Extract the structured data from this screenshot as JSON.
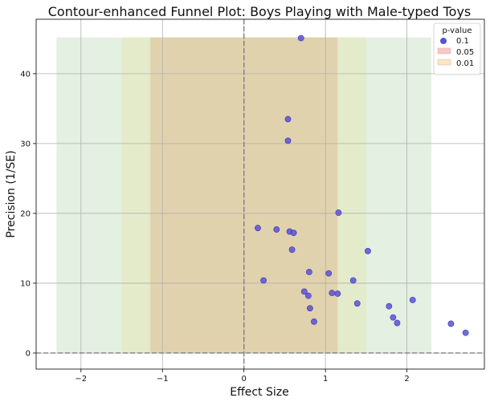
{
  "chart_data": {
    "type": "scatter",
    "title": "Contour-enhanced Funnel Plot: Boys Playing with Male-typed Toys",
    "xlabel": "Effect Size",
    "ylabel": "Precision (1/SE)",
    "xlim": [
      -2.55,
      2.95
    ],
    "ylim": [
      -2.3,
      47.8
    ],
    "xticks": [
      -2,
      -1,
      0,
      1,
      2
    ],
    "yticks": [
      0,
      10,
      20,
      30,
      40
    ],
    "grid": true,
    "legend": {
      "title": "p-value",
      "placement": "top-right",
      "entries": [
        {
          "label": "0.1",
          "kind": "marker",
          "color": "#5b52d6"
        },
        {
          "label": "0.05",
          "kind": "patch",
          "color": "#f4c9c6"
        },
        {
          "label": "0.01",
          "kind": "patch",
          "color": "#f9e6c4"
        }
      ]
    },
    "contour_regions": [
      {
        "x_range": [
          -2.3,
          2.3
        ],
        "y_range": [
          0,
          45.2
        ],
        "color": "#d9ead4",
        "opacity": 0.7
      },
      {
        "x_range": [
          -1.5,
          1.5
        ],
        "y_range": [
          0,
          45.2
        ],
        "color": "#e4e8c0",
        "opacity": 0.7
      },
      {
        "x_range": [
          -1.15,
          1.15
        ],
        "y_range": [
          0,
          45.2
        ],
        "color": "#e0cca6",
        "opacity": 0.8
      }
    ],
    "reference_lines": [
      {
        "axis": "x",
        "value": 0,
        "style": "dashed"
      },
      {
        "axis": "y",
        "value": 0,
        "style": "dashed"
      }
    ],
    "series": [
      {
        "color": "#5b52d6",
        "points": [
          {
            "x": 0.7,
            "y": 45.1
          },
          {
            "x": 0.54,
            "y": 33.5
          },
          {
            "x": 0.54,
            "y": 30.4
          },
          {
            "x": 1.16,
            "y": 20.1
          },
          {
            "x": 0.17,
            "y": 17.9
          },
          {
            "x": 0.4,
            "y": 17.7
          },
          {
            "x": 0.56,
            "y": 17.4
          },
          {
            "x": 0.61,
            "y": 17.2
          },
          {
            "x": 0.59,
            "y": 14.8
          },
          {
            "x": 1.52,
            "y": 14.6
          },
          {
            "x": 0.8,
            "y": 11.6
          },
          {
            "x": 1.04,
            "y": 11.4
          },
          {
            "x": 0.24,
            "y": 10.4
          },
          {
            "x": 1.34,
            "y": 10.4
          },
          {
            "x": 0.74,
            "y": 8.8
          },
          {
            "x": 0.79,
            "y": 8.2
          },
          {
            "x": 1.08,
            "y": 8.6
          },
          {
            "x": 1.15,
            "y": 8.5
          },
          {
            "x": 2.07,
            "y": 7.6
          },
          {
            "x": 1.39,
            "y": 7.1
          },
          {
            "x": 1.78,
            "y": 6.7
          },
          {
            "x": 0.81,
            "y": 6.4
          },
          {
            "x": 1.83,
            "y": 5.1
          },
          {
            "x": 0.86,
            "y": 4.5
          },
          {
            "x": 1.88,
            "y": 4.3
          },
          {
            "x": 2.54,
            "y": 4.2
          },
          {
            "x": 2.72,
            "y": 2.9
          }
        ]
      }
    ]
  }
}
